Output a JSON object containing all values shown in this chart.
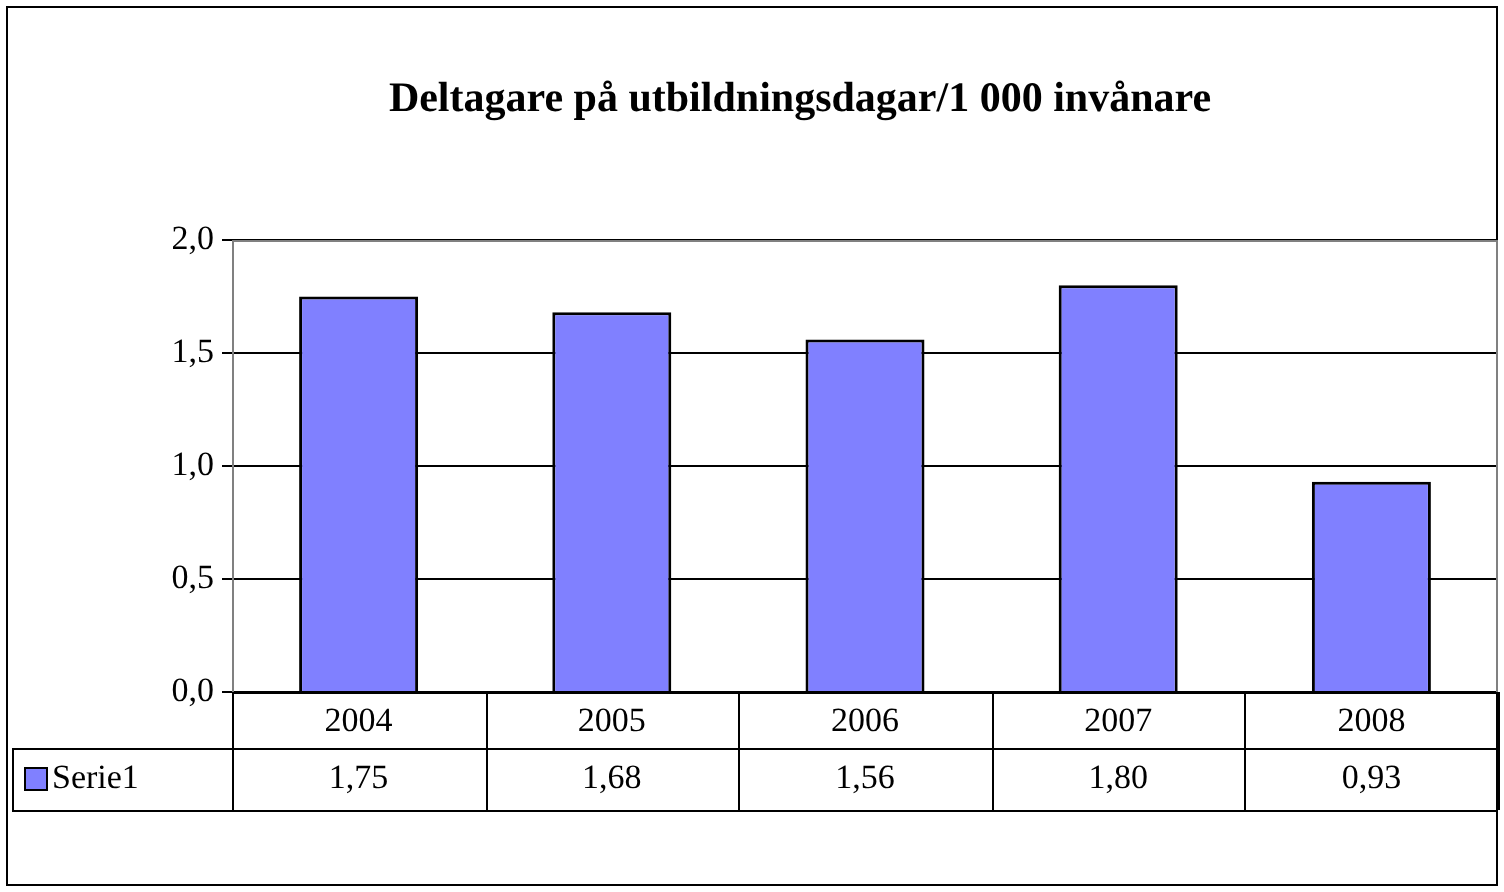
{
  "chart_data": {
    "type": "bar",
    "title": "Deltagare på utbildningsdagar/1 000 invånare",
    "categories": [
      "2004",
      "2005",
      "2006",
      "2007",
      "2008"
    ],
    "series": [
      {
        "name": "Serie1",
        "color": "#8080ff",
        "values": [
          1.75,
          1.68,
          1.56,
          1.8,
          0.93
        ],
        "value_labels": [
          "1,75",
          "1,68",
          "1,56",
          "1,80",
          "0,93"
        ]
      }
    ],
    "ylim": [
      0,
      2
    ],
    "yticks": [
      {
        "value": 0,
        "label": "0,0"
      },
      {
        "value": 0.5,
        "label": "0,5"
      },
      {
        "value": 1,
        "label": "1,0"
      },
      {
        "value": 1.5,
        "label": "1,5"
      },
      {
        "value": 2,
        "label": "2,0"
      }
    ],
    "grid": "y",
    "legend": "bottom left"
  }
}
